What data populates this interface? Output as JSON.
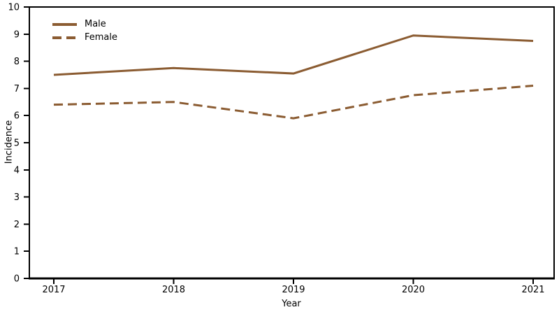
{
  "chart_data": {
    "type": "line",
    "title": "",
    "xlabel": "Year",
    "ylabel": "Incidence",
    "x": [
      "2017",
      "2018",
      "2019",
      "2020",
      "2021"
    ],
    "ylim": [
      0,
      10
    ],
    "yticks": [
      0,
      1,
      2,
      3,
      4,
      5,
      6,
      7,
      8,
      9,
      10
    ],
    "grid": false,
    "legend_position": "top-left-inside",
    "line_color": "#8B5C32",
    "axis_color": "#000000",
    "series": [
      {
        "name": "Male",
        "line_style": "solid",
        "values": [
          7.5,
          7.75,
          7.55,
          8.95,
          8.75
        ]
      },
      {
        "name": "Female",
        "line_style": "dashed",
        "values": [
          6.4,
          6.5,
          5.9,
          6.75,
          7.1
        ]
      }
    ]
  }
}
